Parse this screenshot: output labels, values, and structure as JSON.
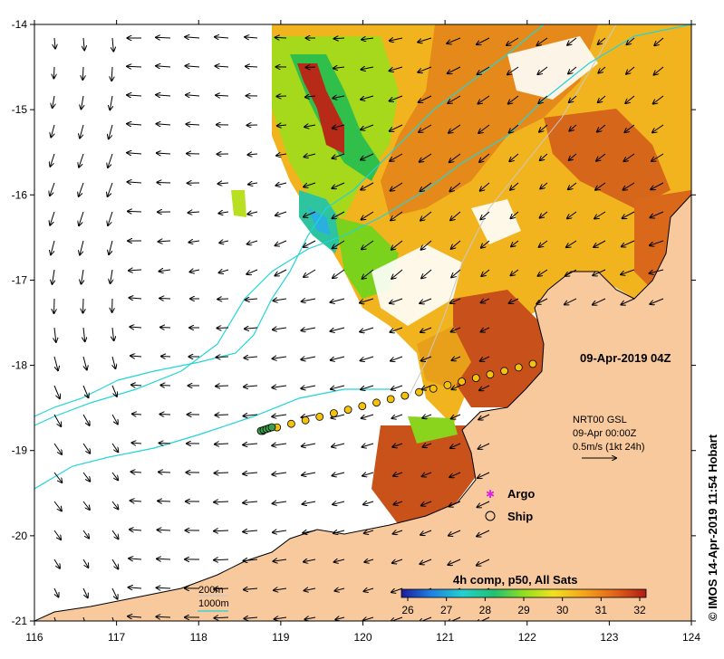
{
  "map": {
    "timestamp": "09-Apr-2019 04Z",
    "credit": "© IMOS 14-Apr-2019 11:54 Hobart",
    "x_ticks": [
      "116",
      "117",
      "118",
      "119",
      "120",
      "121",
      "122",
      "123",
      "124"
    ],
    "y_ticks": [
      "-14",
      "-15",
      "-16",
      "-17",
      "-18",
      "-19",
      "-20",
      "-21"
    ],
    "current_info": {
      "line1": "NRT00 GSL",
      "line2": "09-Apr 00:00Z",
      "line3": "0.5m/s (1kt 24h)"
    },
    "legend": {
      "argo": "Argo",
      "ship": "Ship",
      "contour_200": "200m",
      "contour_1000": "1000m"
    },
    "colorbar": {
      "title": "4h comp, p50, All Sats",
      "ticks": [
        "26",
        "27",
        "28",
        "29",
        "30",
        "31",
        "32"
      ]
    },
    "colors": {
      "land": "#f7c99c",
      "contour_200": "#c9c9c9",
      "contour_1000": "#22d4d8",
      "ship_fill": "#f4c20d"
    }
  }
}
